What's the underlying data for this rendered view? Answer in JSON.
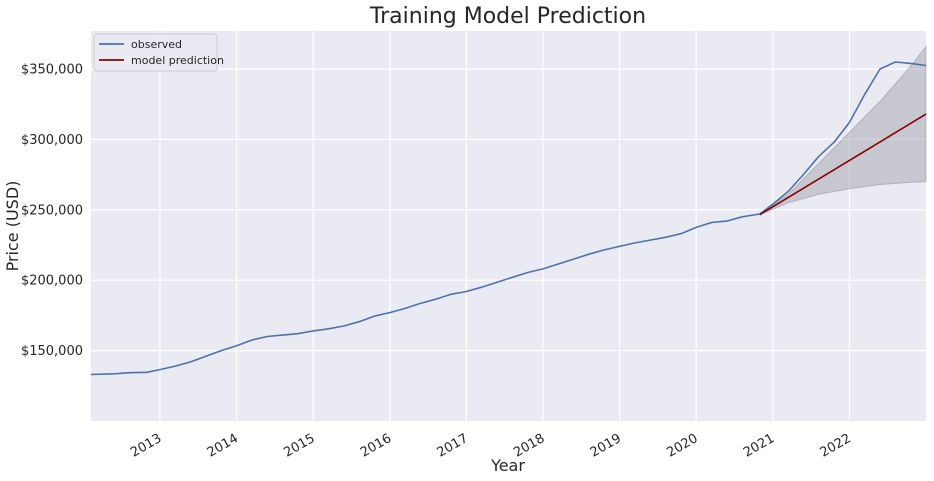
{
  "chart_data": {
    "type": "line",
    "title": "Training Model Prediction",
    "xlabel": "Year",
    "ylabel": "Price (USD)",
    "xlim": [
      2012.1,
      2023.0
    ],
    "ylim": [
      100000,
      377000
    ],
    "x_ticks": [
      2013,
      2014,
      2015,
      2016,
      2017,
      2018,
      2019,
      2020,
      2021,
      2022
    ],
    "x_tick_labels": [
      "2013",
      "2014",
      "2015",
      "2016",
      "2017",
      "2018",
      "2019",
      "2020",
      "2021",
      "2022"
    ],
    "y_ticks": [
      150000,
      200000,
      250000,
      300000,
      350000
    ],
    "y_tick_labels": [
      "$150,000",
      "$200,000",
      "$250,000",
      "$300,000",
      "$350,000"
    ],
    "grid": true,
    "legend_position": "top-left",
    "background_color": "#eaeaf2",
    "series": [
      {
        "name": "observed",
        "color": "#4c72b0",
        "x": [
          2012.1,
          2012.4,
          2012.6,
          2012.83,
          2013.0,
          2013.2,
          2013.4,
          2013.6,
          2013.8,
          2014.0,
          2014.2,
          2014.4,
          2014.6,
          2014.8,
          2015.0,
          2015.2,
          2015.4,
          2015.6,
          2015.8,
          2016.0,
          2016.2,
          2016.4,
          2016.6,
          2016.8,
          2017.0,
          2017.2,
          2017.4,
          2017.6,
          2017.8,
          2018.0,
          2018.2,
          2018.4,
          2018.6,
          2018.8,
          2019.0,
          2019.2,
          2019.4,
          2019.6,
          2019.8,
          2020.0,
          2020.2,
          2020.4,
          2020.6,
          2020.83,
          2021.0,
          2021.2,
          2021.4,
          2021.6,
          2021.8,
          2022.0,
          2022.2,
          2022.4,
          2022.6,
          2022.8,
          2023.0
        ],
        "y": [
          133000,
          133500,
          134300,
          134600,
          136500,
          139000,
          142000,
          146000,
          150000,
          153500,
          157500,
          160000,
          161000,
          162000,
          164000,
          165500,
          167500,
          170500,
          174500,
          177000,
          180000,
          183500,
          186500,
          190000,
          192000,
          195000,
          198500,
          202000,
          205500,
          208000,
          211500,
          215000,
          218500,
          221500,
          224000,
          226500,
          228500,
          230500,
          233000,
          237500,
          241000,
          242000,
          245000,
          247000,
          254000,
          263000,
          275000,
          288000,
          298000,
          312000,
          332000,
          350000,
          355000,
          354000,
          352500
        ]
      },
      {
        "name": "model prediction",
        "color": "#8b0000",
        "x": [
          2020.83,
          2023.0
        ],
        "y": [
          246500,
          318000
        ]
      }
    ],
    "confidence_band": {
      "color": "#9e9ea4",
      "x": [
        2020.83,
        2021.2,
        2021.6,
        2022.0,
        2022.4,
        2022.8,
        2023.0
      ],
      "lower": [
        246500,
        255000,
        261000,
        265000,
        268000,
        269500,
        270000
      ],
      "upper": [
        246500,
        261000,
        283000,
        305000,
        327000,
        352000,
        366000
      ]
    }
  }
}
